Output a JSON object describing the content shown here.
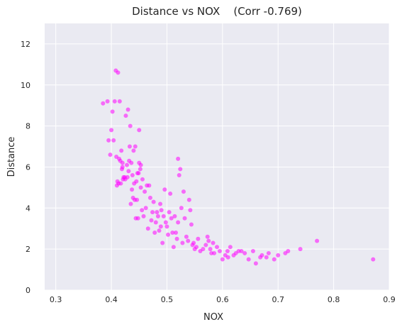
{
  "chart_data": {
    "type": "scatter",
    "title": "Distance vs NOX    (Corr -0.769)",
    "xlabel": "NOX",
    "ylabel": "Distance",
    "xlim": [
      0.28,
      0.9
    ],
    "ylim": [
      0,
      13
    ],
    "x_ticks": [
      "0.3",
      "0.4",
      "0.5",
      "0.6",
      "0.7",
      "0.8",
      "0.9"
    ],
    "y_ticks": [
      "0",
      "2",
      "4",
      "6",
      "8",
      "10",
      "12"
    ],
    "grid": true,
    "background": "#eaeaf2",
    "grid_color": "#ffffff",
    "marker_color": "#ff00ff",
    "marker_opacity": 0.55,
    "series": [
      {
        "x": [
          0.385,
          0.393,
          0.395,
          0.398,
          0.4,
          0.402,
          0.404,
          0.406,
          0.408,
          0.409,
          0.41,
          0.411,
          0.412,
          0.413,
          0.414,
          0.415,
          0.416,
          0.417,
          0.418,
          0.419,
          0.42,
          0.42,
          0.421,
          0.422,
          0.424,
          0.425,
          0.426,
          0.428,
          0.429,
          0.43,
          0.431,
          0.432,
          0.433,
          0.434,
          0.435,
          0.436,
          0.437,
          0.438,
          0.439,
          0.44,
          0.441,
          0.442,
          0.443,
          0.444,
          0.445,
          0.446,
          0.447,
          0.448,
          0.449,
          0.45,
          0.45,
          0.452,
          0.453,
          0.453,
          0.455,
          0.456,
          0.458,
          0.46,
          0.462,
          0.464,
          0.466,
          0.468,
          0.47,
          0.472,
          0.474,
          0.476,
          0.478,
          0.48,
          0.482,
          0.484,
          0.486,
          0.488,
          0.489,
          0.49,
          0.492,
          0.494,
          0.496,
          0.498,
          0.5,
          0.502,
          0.504,
          0.506,
          0.508,
          0.51,
          0.512,
          0.514,
          0.516,
          0.518,
          0.52,
          0.52,
          0.522,
          0.524,
          0.526,
          0.528,
          0.53,
          0.532,
          0.535,
          0.538,
          0.54,
          0.542,
          0.544,
          0.546,
          0.548,
          0.55,
          0.553,
          0.556,
          0.56,
          0.565,
          0.57,
          0.573,
          0.575,
          0.578,
          0.58,
          0.583,
          0.585,
          0.59,
          0.595,
          0.6,
          0.605,
          0.609,
          0.61,
          0.614,
          0.62,
          0.624,
          0.629,
          0.634,
          0.64,
          0.647,
          0.655,
          0.66,
          0.668,
          0.671,
          0.679,
          0.683,
          0.693,
          0.7,
          0.713,
          0.718,
          0.74,
          0.77,
          0.871
        ],
        "y": [
          9.1,
          9.2,
          7.3,
          6.6,
          7.8,
          8.7,
          7.3,
          9.2,
          10.7,
          6.5,
          5.1,
          5.3,
          10.6,
          5.2,
          6.4,
          9.2,
          6.3,
          5.2,
          6.8,
          5.9,
          6.0,
          6.2,
          5.4,
          5.5,
          5.5,
          5.4,
          8.5,
          6.1,
          5.5,
          8.8,
          5.8,
          6.3,
          7.0,
          8.0,
          4.2,
          6.2,
          4.9,
          5.6,
          4.5,
          6.8,
          5.2,
          4.4,
          7.0,
          3.5,
          5.3,
          4.4,
          5.7,
          3.5,
          5.7,
          6.2,
          7.8,
          5.9,
          5.0,
          6.1,
          3.9,
          5.4,
          3.6,
          4.8,
          4.0,
          5.1,
          3.0,
          5.1,
          4.5,
          3.4,
          3.8,
          4.3,
          2.8,
          3.3,
          3.8,
          3.6,
          2.9,
          4.2,
          3.1,
          3.9,
          2.3,
          3.6,
          4.9,
          3.3,
          3.1,
          2.7,
          3.8,
          4.7,
          3.5,
          2.8,
          2.1,
          3.6,
          2.8,
          2.5,
          6.4,
          3.3,
          5.6,
          5.9,
          4.0,
          2.3,
          4.8,
          3.5,
          2.6,
          2.4,
          4.4,
          3.9,
          3.2,
          2.2,
          2.3,
          2.0,
          2.1,
          2.5,
          1.9,
          2.0,
          2.2,
          2.6,
          2.4,
          2.0,
          1.8,
          2.3,
          1.8,
          2.1,
          1.9,
          1.5,
          1.7,
          1.9,
          1.6,
          2.1,
          1.7,
          1.8,
          1.9,
          1.9,
          1.8,
          1.5,
          1.9,
          1.3,
          1.6,
          1.7,
          1.6,
          1.8,
          1.5,
          1.7,
          1.8,
          1.9,
          2.0,
          2.4,
          1.5
        ]
      }
    ]
  }
}
